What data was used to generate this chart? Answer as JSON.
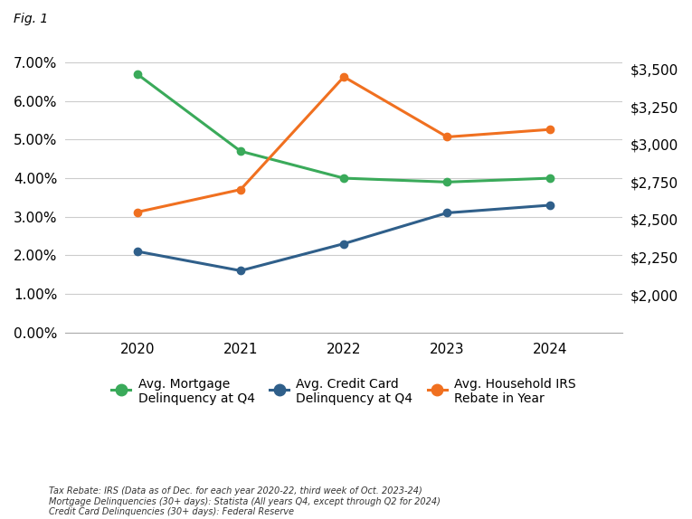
{
  "title": "Fig. 1",
  "years": [
    2020,
    2021,
    2022,
    2023,
    2024
  ],
  "mortgage_delinquency": [
    0.067,
    0.047,
    0.04,
    0.039,
    0.04
  ],
  "credit_card_delinquency": [
    0.021,
    0.016,
    0.023,
    0.031,
    0.033
  ],
  "irs_rebate": [
    2550,
    2700,
    3450,
    3050,
    3100
  ],
  "mortgage_color": "#3aaa5a",
  "credit_card_color": "#2f5f8a",
  "irs_color": "#f07020",
  "background_color": "#ffffff",
  "grid_color": "#cccccc",
  "left_ylim": [
    0.0,
    0.078
  ],
  "left_yticks": [
    0.0,
    0.01,
    0.02,
    0.03,
    0.04,
    0.05,
    0.06,
    0.07
  ],
  "right_ylim": [
    1750,
    3750
  ],
  "right_yticks": [
    2000,
    2250,
    2500,
    2750,
    3000,
    3250,
    3500
  ],
  "xlim": [
    2019.3,
    2024.7
  ],
  "legend_labels": [
    "Avg. Mortgage\nDelinquency at Q4",
    "Avg. Credit Card\nDelinquency at Q4",
    "Avg. Household IRS\nRebate in Year"
  ],
  "footnote_lines": [
    "Tax Rebate: IRS (Data as of Dec. for each year 2020-22, third week of Oct. 2023-24)",
    "Mortgage Delinquencies (30+ days): Statista (All years Q4, except through Q2 for 2024)",
    "Credit Card Delinquencies (30+ days): Federal Reserve"
  ],
  "linewidth": 2.2,
  "markersize": 6
}
